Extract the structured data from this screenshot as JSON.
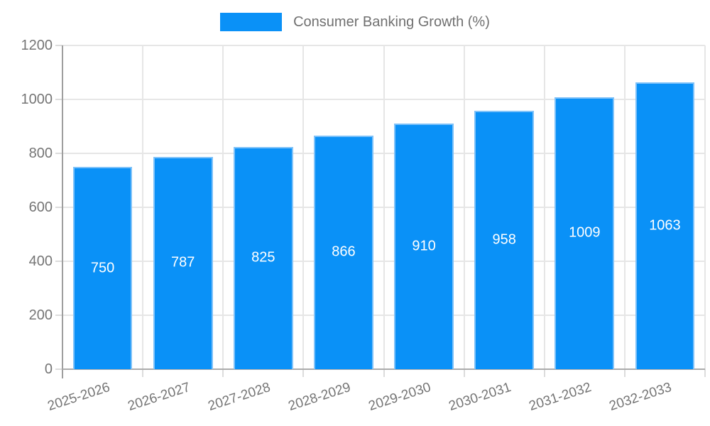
{
  "legend": {
    "label": "Consumer Banking Growth (%)"
  },
  "colors": {
    "bar_fill": "#0a91f7",
    "bar_border": "#7fc2f9",
    "grid": "#e6e6e6",
    "tick": "#dcdcdc",
    "axis_y": "#9e9e9e",
    "axis_x": "#ababab",
    "tick_label": "#757575",
    "legend_text": "#707070",
    "value_label": "#ffffff",
    "background": "#ffffff"
  },
  "chart_data": {
    "type": "bar",
    "title": "Consumer Banking Growth (%)",
    "categories": [
      "2025-2026",
      "2026-2027",
      "2027-2028",
      "2028-2029",
      "2029-2030",
      "2030-2031",
      "2031-2032",
      "2032-2033"
    ],
    "values": [
      750,
      787,
      825,
      866,
      910,
      958,
      1009,
      1063
    ],
    "series_name": "Consumer Banking Growth (%)",
    "xlabel": "",
    "ylabel": "",
    "ylim": [
      0,
      1200
    ],
    "yticks": [
      0,
      200,
      400,
      600,
      800,
      1000,
      1200
    ],
    "grid": true,
    "legend_position": "top",
    "x_tick_rotation_deg": -18,
    "value_label_position": "center-inside"
  }
}
